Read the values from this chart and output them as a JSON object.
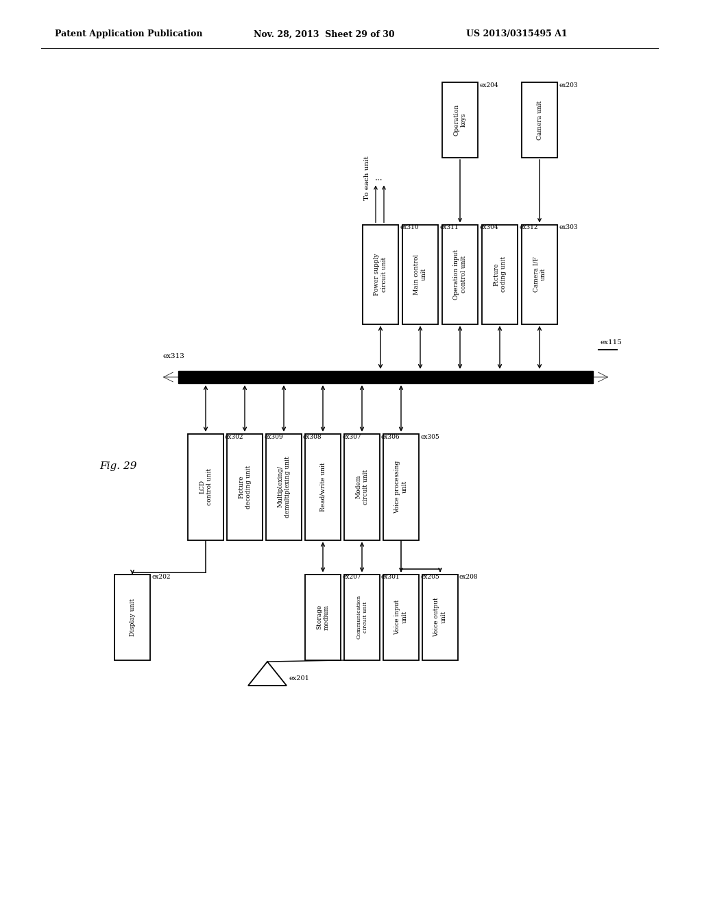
{
  "title_left": "Patent Application Publication",
  "title_mid": "Nov. 28, 2013  Sheet 29 of 30",
  "title_right": "US 2013/0315495 A1",
  "fig_label": "Fig. 29",
  "background": "#ffffff"
}
